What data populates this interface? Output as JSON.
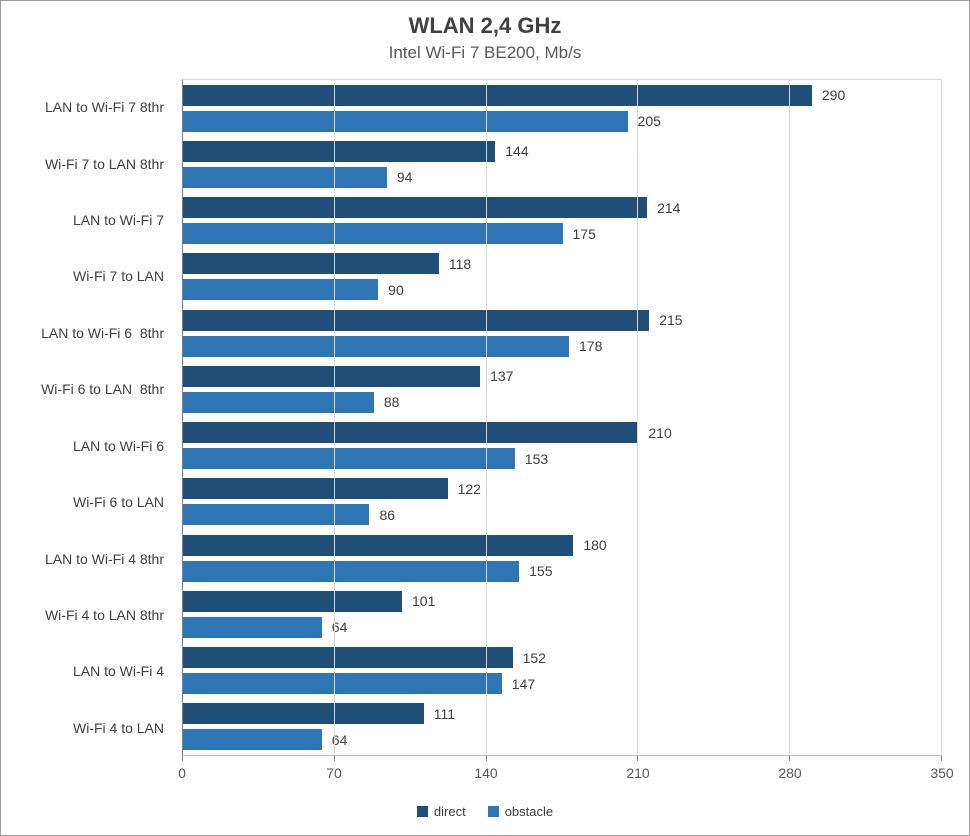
{
  "title": "WLAN 2,4 GHz",
  "subtitle": "Intel Wi-Fi 7 BE200, Mb/s",
  "colors": {
    "direct": "#1F4E79",
    "obstacle": "#2E75B6",
    "gridline": "#D9D9D9",
    "axis_line": "#808080",
    "title_text": "#404040",
    "subtitle_text": "#595959"
  },
  "chart_data": {
    "type": "bar",
    "orientation": "horizontal",
    "title": "WLAN 2,4 GHz",
    "subtitle": "Intel Wi-Fi 7 BE200, Mb/s",
    "categories": [
      "LAN to Wi-Fi 7 8thr",
      "Wi-Fi 7 to LAN 8thr",
      "LAN to Wi-Fi 7",
      "Wi-Fi 7 to LAN",
      "LAN to Wi-Fi 6  8thr",
      "Wi-Fi 6 to LAN  8thr",
      "LAN to Wi-Fi 6",
      "Wi-Fi 6 to LAN",
      "LAN to Wi-Fi 4 8thr",
      "Wi-Fi 4 to LAN 8thr",
      "LAN to Wi-Fi 4",
      "Wi-Fi 4 to LAN"
    ],
    "series": [
      {
        "name": "direct",
        "color": "#1F4E79",
        "values": [
          290,
          144,
          214,
          118,
          215,
          137,
          210,
          122,
          180,
          101,
          152,
          111
        ]
      },
      {
        "name": "obstacle",
        "color": "#2E75B6",
        "values": [
          205,
          94,
          175,
          90,
          178,
          88,
          153,
          86,
          155,
          64,
          147,
          64
        ]
      }
    ],
    "xlim": [
      0,
      350
    ],
    "x_ticks": [
      0,
      70,
      140,
      210,
      280,
      350
    ],
    "grid": "vertical",
    "legend_position": "bottom",
    "value_labels": "outside-end"
  }
}
